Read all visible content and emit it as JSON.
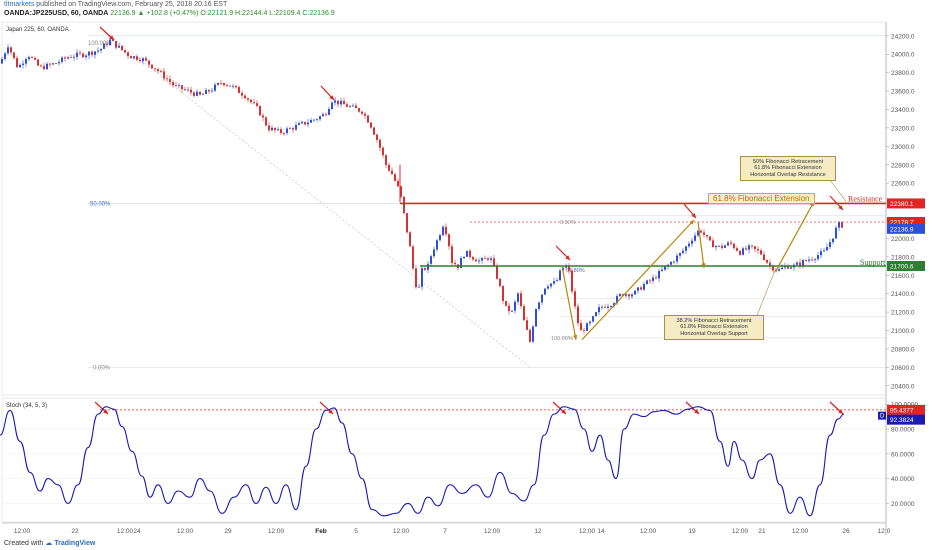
{
  "header": {
    "publisher_user": "tltmarkets",
    "publisher_text": " published on TradingView.com, February 25, 2018 20:16 EST",
    "symbol": "OANDA:JP225USD, 60, OANDA",
    "ohlc": "  22136.9  ▲ +102.8 (+0.47%)  O:22121.9  H:22144.4  L:22109.4  C:22136.9",
    "pane_title": "Japan 225, 60, OANDA"
  },
  "footer": {
    "created_with": "Created with",
    "brand": "TradingView"
  },
  "colors": {
    "bull": "#2f4fd9",
    "bear": "#d93131",
    "resistance": "#e02424",
    "support": "#2e7d32",
    "arrow_red": "#e02020",
    "arrow_brown": "#b8860b",
    "stoch_line": "#1b1bb0",
    "axis_text": "#555555"
  },
  "chart_data": [
    {
      "type": "candlestick",
      "title": "Japan 225, 60, OANDA",
      "ylim": [
        20300,
        24350
      ],
      "y_ticks": [
        20400,
        20600,
        20800,
        21000,
        21200,
        21400,
        21600,
        21800,
        22000,
        22200,
        22400,
        22600,
        22800,
        23000,
        23200,
        23400,
        23600,
        23800,
        24000,
        24200
      ],
      "y_tick_labels": [
        "20400.0",
        "20600.0",
        "20800.0",
        "21000.0",
        "21200.0",
        "21400.0",
        "21600.0",
        "21800.0",
        "22000.0",
        "22200.0",
        "22400.0",
        "22600.0",
        "22800.0",
        "23000.0",
        "23200.0",
        "23400.0",
        "23600.0",
        "23800.0",
        "24000.0",
        "24200.0"
      ],
      "x_tick_labels": [
        "12:00",
        "22",
        "12:00",
        "24",
        "12:00",
        "29",
        "12:00",
        "Feb",
        "5",
        "12:00",
        "7",
        "12:00",
        "12",
        "12:00",
        "14",
        "12:00",
        "19",
        "12:00",
        "21",
        "12:00",
        "26",
        "12:0"
      ],
      "close_path": [
        [
          0,
          23900
        ],
        [
          8,
          24100
        ],
        [
          18,
          23850
        ],
        [
          28,
          24000
        ],
        [
          40,
          23850
        ],
        [
          55,
          23900
        ],
        [
          70,
          23980
        ],
        [
          85,
          24000
        ],
        [
          100,
          24050
        ],
        [
          110,
          24150
        ],
        [
          118,
          24080
        ],
        [
          130,
          23980
        ],
        [
          142,
          23950
        ],
        [
          155,
          23850
        ],
        [
          165,
          23750
        ],
        [
          175,
          23650
        ],
        [
          188,
          23600
        ],
        [
          200,
          23550
        ],
        [
          212,
          23620
        ],
        [
          222,
          23700
        ],
        [
          232,
          23650
        ],
        [
          245,
          23550
        ],
        [
          258,
          23400
        ],
        [
          268,
          23200
        ],
        [
          280,
          23150
        ],
        [
          292,
          23200
        ],
        [
          304,
          23250
        ],
        [
          316,
          23300
        ],
        [
          325,
          23350
        ],
        [
          332,
          23500
        ],
        [
          342,
          23460
        ],
        [
          352,
          23420
        ],
        [
          362,
          23380
        ],
        [
          370,
          23250
        ],
        [
          378,
          23050
        ],
        [
          386,
          22800
        ],
        [
          392,
          22700
        ],
        [
          400,
          22500
        ],
        [
          405,
          22200
        ],
        [
          410,
          21900
        ],
        [
          414,
          21600
        ],
        [
          418,
          21400
        ],
        [
          422,
          21650
        ],
        [
          428,
          21700
        ],
        [
          432,
          21850
        ],
        [
          438,
          22000
        ],
        [
          443,
          22150
        ],
        [
          447,
          22050
        ],
        [
          452,
          21750
        ],
        [
          458,
          21700
        ],
        [
          465,
          21850
        ],
        [
          472,
          21800
        ],
        [
          480,
          21750
        ],
        [
          490,
          21800
        ],
        [
          498,
          21550
        ],
        [
          505,
          21250
        ],
        [
          512,
          21200
        ],
        [
          518,
          21400
        ],
        [
          524,
          21100
        ],
        [
          530,
          20880
        ],
        [
          536,
          21250
        ],
        [
          546,
          21500
        ],
        [
          556,
          21520
        ],
        [
          562,
          21680
        ],
        [
          568,
          21700
        ],
        [
          574,
          21300
        ],
        [
          580,
          20980
        ],
        [
          590,
          21080
        ],
        [
          600,
          21250
        ],
        [
          612,
          21300
        ],
        [
          622,
          21400
        ],
        [
          634,
          21400
        ],
        [
          644,
          21500
        ],
        [
          652,
          21550
        ],
        [
          662,
          21650
        ],
        [
          672,
          21750
        ],
        [
          682,
          21850
        ],
        [
          692,
          22000
        ],
        [
          700,
          22100
        ],
        [
          710,
          21950
        ],
        [
          720,
          21900
        ],
        [
          730,
          21950
        ],
        [
          740,
          21850
        ],
        [
          750,
          21900
        ],
        [
          760,
          21850
        ],
        [
          770,
          21700
        ],
        [
          778,
          21650
        ],
        [
          786,
          21700
        ],
        [
          794,
          21700
        ],
        [
          804,
          21750
        ],
        [
          814,
          21800
        ],
        [
          824,
          21850
        ],
        [
          832,
          22000
        ],
        [
          838,
          22150
        ],
        [
          844,
          22140
        ]
      ],
      "levels": {
        "resistance": 22380.1,
        "target": 22178.7,
        "current": 22136.9,
        "support": 21700.6
      },
      "price_tags": [
        "22380.1",
        "22178.7",
        "22136.9",
        "21700.6"
      ],
      "fib_labels": [
        "100.00%",
        "50.00%",
        "0.00%",
        "0.00%",
        "61.80%",
        "100.00%"
      ],
      "labels": {
        "resistance": "Resistance",
        "support": "Support",
        "fib_extension": "61.8% Fibonacci Extension"
      },
      "annotations": [
        "50% Fibonacci Retracement\n61.8% Fibonacci Extension\nHorizontal Overlap Resistance",
        "38.2% Fibonacci Retracement\n61.8% Fibonacci Extension\nHorizontal Overlap Support"
      ]
    },
    {
      "type": "line",
      "title": "Stoch (34, 5, 3)",
      "ylim": [
        5,
        105
      ],
      "y_ticks": [
        20,
        40,
        60,
        80,
        100
      ],
      "y_tick_labels": [
        "20.0000",
        "40.0000",
        "60.0000",
        "80.0000",
        "100.0000"
      ],
      "level": 95.4377,
      "tags": [
        "95.4377",
        "92.3824"
      ],
      "legend_marker": "D",
      "series": [
        {
          "points": [
            [
              0,
              75
            ],
            [
              10,
              95
            ],
            [
              20,
              70
            ],
            [
              30,
              45
            ],
            [
              40,
              30
            ],
            [
              48,
              40
            ],
            [
              58,
              35
            ],
            [
              68,
              20
            ],
            [
              78,
              35
            ],
            [
              88,
              65
            ],
            [
              98,
              92
            ],
            [
              106,
              98
            ],
            [
              114,
              96
            ],
            [
              122,
              82
            ],
            [
              132,
              62
            ],
            [
              142,
              42
            ],
            [
              150,
              25
            ],
            [
              158,
              35
            ],
            [
              168,
              20
            ],
            [
              178,
              30
            ],
            [
              190,
              25
            ],
            [
              200,
              40
            ],
            [
              210,
              30
            ],
            [
              222,
              12
            ],
            [
              234,
              25
            ],
            [
              246,
              35
            ],
            [
              256,
              20
            ],
            [
              266,
              33
            ],
            [
              276,
              20
            ],
            [
              286,
              35
            ],
            [
              296,
              15
            ],
            [
              306,
              50
            ],
            [
              316,
              80
            ],
            [
              326,
              95
            ],
            [
              334,
              97
            ],
            [
              342,
              85
            ],
            [
              352,
              60
            ],
            [
              362,
              40
            ],
            [
              372,
              15
            ],
            [
              384,
              10
            ],
            [
              396,
              12
            ],
            [
              408,
              20
            ],
            [
              418,
              12
            ],
            [
              428,
              25
            ],
            [
              438,
              18
            ],
            [
              450,
              35
            ],
            [
              462,
              28
            ],
            [
              476,
              35
            ],
            [
              488,
              25
            ],
            [
              500,
              45
            ],
            [
              512,
              28
            ],
            [
              524,
              22
            ],
            [
              534,
              35
            ],
            [
              544,
              75
            ],
            [
              554,
              92
            ],
            [
              564,
              98
            ],
            [
              574,
              96
            ],
            [
              584,
              80
            ],
            [
              592,
              62
            ],
            [
              600,
              75
            ],
            [
              608,
              55
            ],
            [
              616,
              40
            ],
            [
              624,
              80
            ],
            [
              634,
              92
            ],
            [
              644,
              90
            ],
            [
              654,
              94
            ],
            [
              664,
              95
            ],
            [
              676,
              92
            ],
            [
              688,
              96
            ],
            [
              698,
              98
            ],
            [
              710,
              95
            ],
            [
              720,
              70
            ],
            [
              728,
              50
            ],
            [
              734,
              70
            ],
            [
              742,
              55
            ],
            [
              752,
              40
            ],
            [
              760,
              55
            ],
            [
              770,
              60
            ],
            [
              780,
              35
            ],
            [
              790,
              12
            ],
            [
              800,
              25
            ],
            [
              810,
              10
            ],
            [
              820,
              35
            ],
            [
              830,
              75
            ],
            [
              838,
              88
            ],
            [
              844,
              92
            ]
          ]
        }
      ]
    }
  ]
}
